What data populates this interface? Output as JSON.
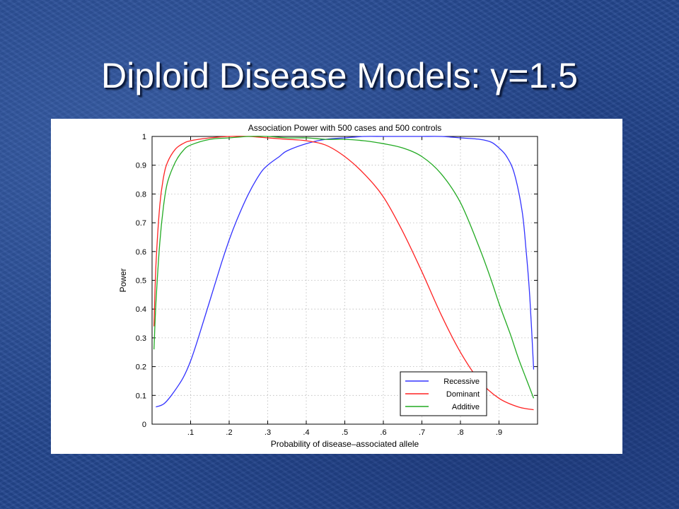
{
  "slide": {
    "title": "Diploid Disease Models: γ=1.5"
  },
  "chart_data": {
    "type": "line",
    "title": "Association Power with 500 cases and 500 controls",
    "xlabel": "Probability of disease–associated allele",
    "ylabel": "Power",
    "xlim": [
      0,
      1
    ],
    "ylim": [
      0,
      1
    ],
    "x_ticks": [
      0.1,
      0.2,
      0.3,
      0.4,
      0.5,
      0.6,
      0.7,
      0.8,
      0.9
    ],
    "x_tick_labels": [
      ".1",
      ".2",
      ".3",
      ".4",
      ".5",
      ".6",
      ".7",
      ".8",
      ".9"
    ],
    "y_ticks": [
      0,
      0.1,
      0.2,
      0.3,
      0.4,
      0.5,
      0.6,
      0.7,
      0.8,
      0.9,
      1
    ],
    "y_tick_labels": [
      "0",
      "0.1",
      "0.2",
      "0.3",
      "0.4",
      "0.5",
      "0.6",
      "0.7",
      "0.8",
      "0.9",
      "1"
    ],
    "grid": true,
    "legend_position": "bottom-right",
    "series": [
      {
        "name": "Recessive",
        "color": "#3333ff",
        "x": [
          0.01,
          0.03,
          0.05,
          0.08,
          0.1,
          0.12,
          0.15,
          0.18,
          0.2,
          0.22,
          0.25,
          0.28,
          0.3,
          0.33,
          0.35,
          0.4,
          0.45,
          0.5,
          0.55,
          0.6,
          0.65,
          0.7,
          0.75,
          0.8,
          0.85,
          0.88,
          0.9,
          0.92,
          0.94,
          0.96,
          0.97,
          0.98,
          0.99
        ],
        "y": [
          0.06,
          0.07,
          0.1,
          0.16,
          0.22,
          0.3,
          0.43,
          0.56,
          0.64,
          0.71,
          0.8,
          0.87,
          0.9,
          0.93,
          0.95,
          0.975,
          0.99,
          0.995,
          1.0,
          1.0,
          1.0,
          1.0,
          1.0,
          0.995,
          0.99,
          0.98,
          0.96,
          0.93,
          0.87,
          0.74,
          0.61,
          0.44,
          0.19
        ]
      },
      {
        "name": "Dominant",
        "color": "#ff2222",
        "x": [
          0.005,
          0.01,
          0.02,
          0.03,
          0.04,
          0.06,
          0.08,
          0.1,
          0.15,
          0.2,
          0.25,
          0.3,
          0.35,
          0.4,
          0.45,
          0.5,
          0.55,
          0.6,
          0.65,
          0.7,
          0.75,
          0.8,
          0.85,
          0.9,
          0.95,
          0.99
        ],
        "y": [
          0.34,
          0.55,
          0.76,
          0.86,
          0.91,
          0.955,
          0.975,
          0.985,
          0.995,
          1.0,
          1.0,
          0.995,
          0.99,
          0.985,
          0.97,
          0.93,
          0.87,
          0.79,
          0.67,
          0.53,
          0.38,
          0.25,
          0.15,
          0.09,
          0.06,
          0.05
        ]
      },
      {
        "name": "Additive",
        "color": "#22aa22",
        "x": [
          0.005,
          0.01,
          0.02,
          0.03,
          0.04,
          0.06,
          0.08,
          0.1,
          0.15,
          0.2,
          0.25,
          0.3,
          0.35,
          0.4,
          0.45,
          0.5,
          0.55,
          0.6,
          0.65,
          0.7,
          0.75,
          0.8,
          0.85,
          0.88,
          0.9,
          0.93,
          0.95,
          0.97,
          0.99
        ],
        "y": [
          0.26,
          0.42,
          0.63,
          0.76,
          0.84,
          0.91,
          0.95,
          0.97,
          0.99,
          0.995,
          1.0,
          1.0,
          0.995,
          0.995,
          0.99,
          0.99,
          0.985,
          0.975,
          0.96,
          0.93,
          0.87,
          0.77,
          0.61,
          0.5,
          0.42,
          0.31,
          0.23,
          0.16,
          0.09
        ]
      }
    ]
  }
}
